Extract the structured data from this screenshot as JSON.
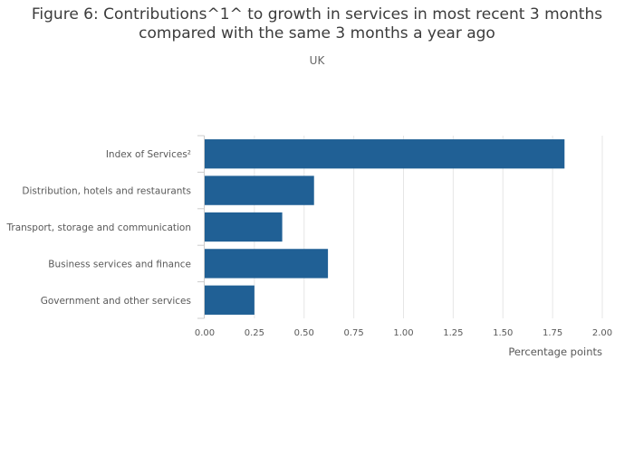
{
  "chart_data": {
    "type": "bar",
    "orientation": "horizontal",
    "title_line1": "Figure 6: Contributions^1^ to growth in services in most recent 3 months",
    "title_line2": "compared with the same 3 months a year ago",
    "subtitle": "UK",
    "xlabel": "Percentage points",
    "ylabel": "",
    "categories": [
      "Index of Services²",
      "Distribution, hotels and restaurants",
      "Transport, storage and communication",
      "Business services and finance",
      "Government and other services"
    ],
    "values": [
      1.81,
      0.55,
      0.39,
      0.62,
      0.25
    ],
    "xlim": [
      0,
      2
    ],
    "x_ticks": [
      "0.00",
      "0.25",
      "0.50",
      "0.75",
      "1.00",
      "1.25",
      "1.50",
      "1.75",
      "2.00"
    ],
    "grid": true,
    "bar_color": "#206095",
    "grid_color": "#e6e6e6",
    "axis_color": "#cccccc"
  }
}
